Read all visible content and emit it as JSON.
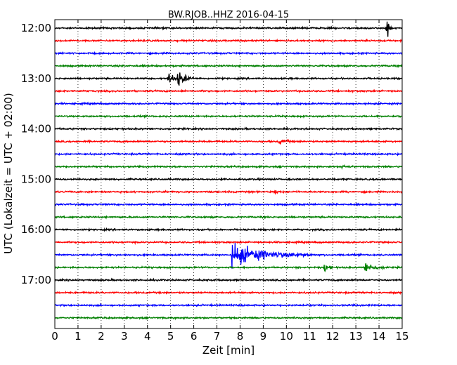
{
  "chart_data": {
    "type": "line",
    "title": "BW.RJOB..HHZ 2016-04-15",
    "xlabel": "Zeit  [min]",
    "ylabel": "UTC (Lokalzeit = UTC + 02:00)",
    "xlim": [
      0,
      15
    ],
    "x_ticks": [
      "0",
      "1",
      "2",
      "3",
      "4",
      "5",
      "6",
      "7",
      "8",
      "9",
      "10",
      "11",
      "12",
      "13",
      "14",
      "15"
    ],
    "y_tick_labels": [
      "12:00",
      "13:00",
      "14:00",
      "15:00",
      "16:00",
      "17:00"
    ],
    "line_offset_minutes": 15,
    "grid": "vertical dotted",
    "line_colors": [
      "#000000",
      "#ff0000",
      "#0000ff",
      "#008000"
    ],
    "traces": [
      {
        "start": "12:00",
        "events": [
          {
            "t": 14.35,
            "amp": 1.0,
            "dur": 0.25
          }
        ]
      },
      {
        "start": "12:15",
        "events": []
      },
      {
        "start": "12:30",
        "events": []
      },
      {
        "start": "12:45",
        "events": []
      },
      {
        "start": "13:00",
        "events": [
          {
            "t": 4.9,
            "amp": 0.6,
            "dur": 0.5
          },
          {
            "t": 5.3,
            "amp": 0.85,
            "dur": 0.7
          }
        ]
      },
      {
        "start": "13:15",
        "events": []
      },
      {
        "start": "13:30",
        "events": []
      },
      {
        "start": "13:45",
        "events": []
      },
      {
        "start": "14:00",
        "events": []
      },
      {
        "start": "14:15",
        "events": [
          {
            "t": 9.7,
            "amp": 0.2,
            "dur": 0.8
          }
        ]
      },
      {
        "start": "14:30",
        "events": []
      },
      {
        "start": "14:45",
        "events": [
          {
            "t": 12.4,
            "amp": 0.15,
            "dur": 0.5
          }
        ]
      },
      {
        "start": "15:00",
        "events": []
      },
      {
        "start": "15:15",
        "events": [
          {
            "t": 9.5,
            "amp": 0.25,
            "dur": 0.3
          }
        ]
      },
      {
        "start": "15:30",
        "events": []
      },
      {
        "start": "15:45",
        "events": []
      },
      {
        "start": "16:00",
        "events": []
      },
      {
        "start": "16:15",
        "events": []
      },
      {
        "start": "16:30",
        "events": [
          {
            "t": 7.65,
            "amp": 1.0,
            "dur": 3.5
          }
        ]
      },
      {
        "start": "16:45",
        "events": [
          {
            "t": 11.65,
            "amp": 0.35,
            "dur": 0.5
          },
          {
            "t": 13.4,
            "amp": 0.45,
            "dur": 1.0
          }
        ]
      },
      {
        "start": "17:00",
        "events": []
      },
      {
        "start": "17:15",
        "events": []
      },
      {
        "start": "17:30",
        "events": []
      },
      {
        "start": "17:45",
        "events": []
      }
    ]
  }
}
